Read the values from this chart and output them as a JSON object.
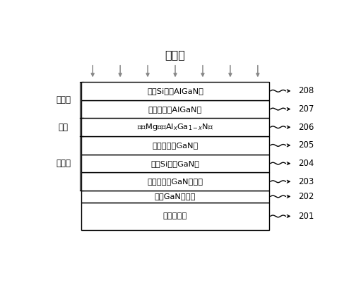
{
  "title": "入射光",
  "layer_labels": {
    "208": "施主Si掺杂AlGaN层",
    "207": "非故意掺杂AlGaN层",
    "206": "受主Mg掺杂AlₓGa₁₋ₓN层",
    "205": "非故意掺杂GaN层",
    "204": "施主Si掺杂GaN层",
    "203": "非故意掺杂GaN过渡层",
    "202": "低温GaN成核层",
    "201": "蓝宝石衬底"
  },
  "layer_heights_raw": {
    "201": 1.3,
    "202": 0.55,
    "203": 0.85,
    "204": 0.85,
    "205": 0.85,
    "206": 0.85,
    "207": 0.85,
    "208": 0.85
  },
  "side_labels": [
    {
      "text": "发射极",
      "nums": [
        "207",
        "208"
      ]
    },
    {
      "text": "基极",
      "nums": [
        "206"
      ]
    },
    {
      "text": "集电极",
      "nums": [
        "203",
        "204",
        "205"
      ]
    }
  ],
  "background_color": "#ffffff",
  "layer_fill": "#ffffff",
  "layer_edge": "#000000",
  "text_color": "#000000",
  "arrow_color": "#888888"
}
